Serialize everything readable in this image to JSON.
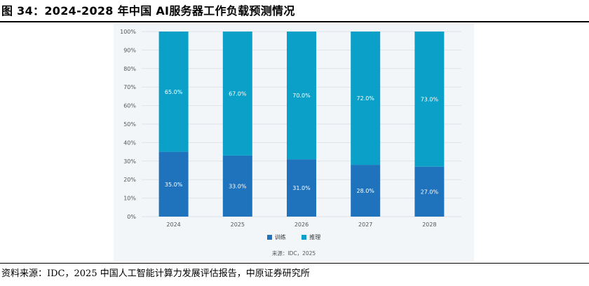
{
  "figure_title": "图 34：2024-2028 年中国 AI服务器工作负载预测情况",
  "footer_source": "资料来源：IDC，2025 中国人工智能计算力发展评估报告，中原证券研究所",
  "chart_source": "来源：IDC，2025",
  "colors": {
    "training": "#1f73bd",
    "inference": "#0aa0c8",
    "grid": "#dde3e8",
    "panel": "#f3f6f9"
  },
  "chart_data": {
    "type": "bar",
    "stacked": true,
    "categories": [
      "2024",
      "2025",
      "2026",
      "2027",
      "2028"
    ],
    "series": [
      {
        "name": "训练",
        "values": [
          35.0,
          33.0,
          31.0,
          28.0,
          27.0
        ],
        "labels": [
          "35.0%",
          "33.0%",
          "31.0%",
          "28.0%",
          "27.0%"
        ]
      },
      {
        "name": "推理",
        "values": [
          65.0,
          67.0,
          70.0,
          72.0,
          73.0
        ],
        "labels": [
          "65.0%",
          "67.0%",
          "70.0%",
          "72.0%",
          "73.0%"
        ]
      }
    ],
    "ylim": [
      0,
      100
    ],
    "yticks": [
      "0%",
      "10%",
      "20%",
      "30%",
      "40%",
      "50%",
      "60%",
      "70%",
      "80%",
      "90%",
      "100%"
    ],
    "grid": true,
    "legend_position": "bottom-center"
  }
}
